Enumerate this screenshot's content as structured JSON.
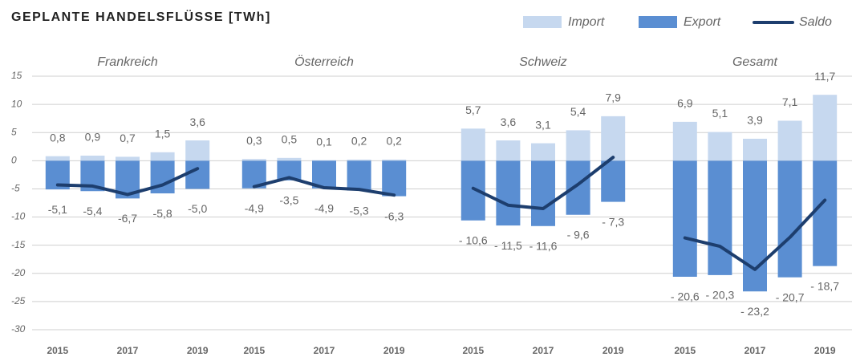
{
  "title": "GEPLANTE HANDELSFLÜSSE [TWh]",
  "chart_data": [
    {
      "type": "bar",
      "title": "Frankreich",
      "categories": [
        "2015",
        null,
        "2017",
        null,
        "2019"
      ],
      "ylim": [
        -30,
        15
      ],
      "yticks": [
        15,
        10,
        5,
        0,
        -5,
        -10,
        -15,
        -20,
        -25,
        -30
      ],
      "grid": true,
      "series": [
        {
          "name": "Import",
          "color": "#c6d8ef",
          "values": [
            0.8,
            0.9,
            0.7,
            1.5,
            3.6
          ],
          "value_labels": [
            "0,8",
            "0,9",
            "0,7",
            "1,5",
            "3,6"
          ]
        },
        {
          "name": "Export",
          "color": "#5a8ed2",
          "values": [
            -5.1,
            -5.4,
            -6.7,
            -5.8,
            -5.0
          ],
          "value_labels": [
            "-5,1",
            "-5,4",
            "-6,7",
            "-5,8",
            "-5,0"
          ]
        },
        {
          "name": "Saldo",
          "type": "line",
          "color": "#1d3e6e",
          "values": [
            -4.3,
            -4.5,
            -6.0,
            -4.3,
            -1.4
          ]
        }
      ]
    },
    {
      "type": "bar",
      "title": "Österreich",
      "categories": [
        "2015",
        null,
        "2017",
        null,
        "2019"
      ],
      "ylim": [
        -30,
        15
      ],
      "series": [
        {
          "name": "Import",
          "color": "#c6d8ef",
          "values": [
            0.3,
            0.5,
            0.1,
            0.2,
            0.2
          ],
          "value_labels": [
            "0,3",
            "0,5",
            "0,1",
            "0,2",
            "0,2"
          ]
        },
        {
          "name": "Export",
          "color": "#5a8ed2",
          "values": [
            -4.9,
            -3.5,
            -4.9,
            -5.3,
            -6.3
          ],
          "value_labels": [
            "-4,9",
            "-3,5",
            "-4,9",
            "-5,3",
            "-6,3"
          ]
        },
        {
          "name": "Saldo",
          "type": "line",
          "color": "#1d3e6e",
          "values": [
            -4.6,
            -3.0,
            -4.8,
            -5.1,
            -6.1
          ]
        }
      ]
    },
    {
      "type": "bar",
      "title": "Schweiz",
      "categories": [
        "2015",
        null,
        "2017",
        null,
        "2019"
      ],
      "ylim": [
        -30,
        15
      ],
      "series": [
        {
          "name": "Import",
          "color": "#c6d8ef",
          "values": [
            5.7,
            3.6,
            3.1,
            5.4,
            7.9
          ],
          "value_labels": [
            "5,7",
            "3,6",
            "3,1",
            "5,4",
            "7,9"
          ]
        },
        {
          "name": "Export",
          "color": "#5a8ed2",
          "values": [
            -10.6,
            -11.5,
            -11.6,
            -9.6,
            -7.3
          ],
          "value_labels": [
            "- 10,6",
            "- 11,5",
            "- 11,6",
            "- 9,6",
            "- 7,3"
          ]
        },
        {
          "name": "Saldo",
          "type": "line",
          "color": "#1d3e6e",
          "values": [
            -4.9,
            -7.9,
            -8.5,
            -4.2,
            0.6
          ]
        }
      ]
    },
    {
      "type": "bar",
      "title": "Gesamt",
      "categories": [
        "2015",
        null,
        "2017",
        null,
        "2019"
      ],
      "ylim": [
        -30,
        15
      ],
      "series": [
        {
          "name": "Import",
          "color": "#c6d8ef",
          "values": [
            6.9,
            5.1,
            3.9,
            7.1,
            11.7
          ],
          "value_labels": [
            "6,9",
            "5,1",
            "3,9",
            "7,1",
            "11,7"
          ]
        },
        {
          "name": "Export",
          "color": "#5a8ed2",
          "values": [
            -20.6,
            -20.3,
            -23.2,
            -20.7,
            -18.7
          ],
          "value_labels": [
            "- 20,6",
            "- 20,3",
            "- 23,2",
            "- 20,7",
            "- 18,7"
          ]
        },
        {
          "name": "Saldo",
          "type": "line",
          "color": "#1d3e6e",
          "values": [
            -13.7,
            -15.2,
            -19.3,
            -13.6,
            -7.0
          ]
        }
      ]
    }
  ]
}
